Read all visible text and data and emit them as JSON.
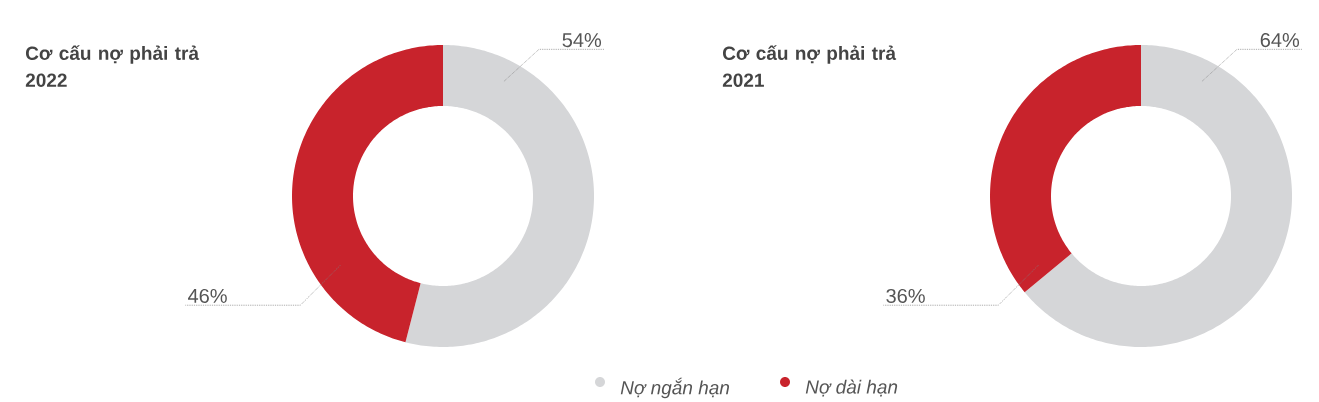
{
  "chart_data": [
    {
      "type": "donut",
      "title": "Cơ cấu nợ phải trả 2022",
      "categories": [
        "Nợ ngắn hạn",
        "Nợ dài hạn"
      ],
      "values": [
        54,
        46
      ],
      "colors": [
        "#d5d6d8",
        "#c8232c"
      ],
      "value_labels": [
        "54%",
        "46%"
      ],
      "legend": "bottom"
    },
    {
      "type": "donut",
      "title": "Cơ cấu nợ phải trả 2021",
      "categories": [
        null,
        null
      ],
      "values": [
        64,
        36
      ],
      "colors": [
        "#d5d6d8",
        "#c8232c"
      ],
      "value_labels": [
        "64%",
        "36%"
      ]
    }
  ]
}
